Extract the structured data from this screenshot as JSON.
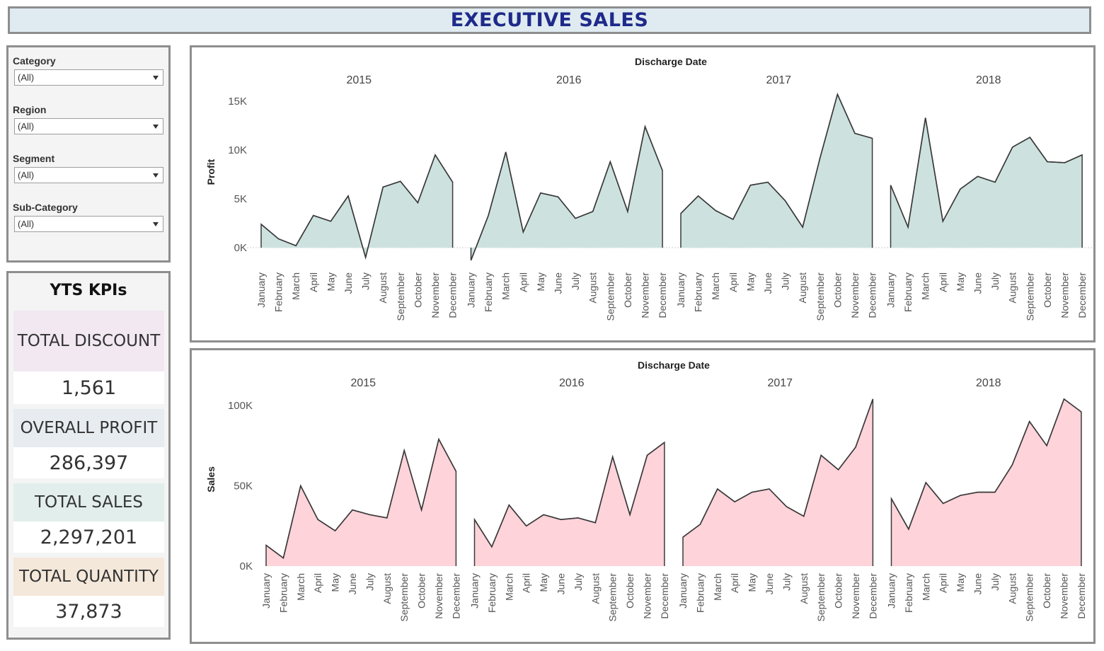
{
  "header": {
    "title": "EXECUTIVE SALES"
  },
  "filters": [
    {
      "label": "Category",
      "value": "(All)"
    },
    {
      "label": "Region",
      "value": "(All)"
    },
    {
      "label": "Segment",
      "value": "(All)"
    },
    {
      "label": "Sub-Category",
      "value": "(All)"
    }
  ],
  "kpis": {
    "title": "YTS KPIs",
    "items": [
      {
        "label": "TOTAL DISCOUNT",
        "value": "1,561",
        "color": "#f1e8f2"
      },
      {
        "label": "OVERALL PROFIT",
        "value": "286,397",
        "color": "#e6ecf0"
      },
      {
        "label": "TOTAL SALES",
        "value": "2,297,201",
        "color": "#e2eeec"
      },
      {
        "label": "TOTAL QUANTITY",
        "value": "37,873",
        "color": "#f4e8da"
      }
    ]
  },
  "chart_data": [
    {
      "type": "area",
      "title": "Discharge Date",
      "ylabel": "Profit",
      "ylim": [
        -1500,
        17000
      ],
      "yticks": [
        0,
        5000,
        10000,
        15000
      ],
      "ytick_labels": [
        "0K",
        "5K",
        "10K",
        "15K"
      ],
      "grid": false,
      "fill": "#cde2df",
      "stroke": "#3a3a3a",
      "months": [
        "January",
        "February",
        "March",
        "April",
        "May",
        "June",
        "July",
        "August",
        "September",
        "October",
        "November",
        "December"
      ],
      "series": [
        {
          "name": "2015",
          "values": [
            2400,
            900,
            200,
            3300,
            2700,
            5300,
            -1000,
            6200,
            6800,
            4600,
            9500,
            6700
          ]
        },
        {
          "name": "2016",
          "values": [
            -1300,
            3300,
            9800,
            1600,
            5600,
            5200,
            3000,
            3700,
            8800,
            3700,
            12400,
            7900
          ]
        },
        {
          "name": "2017",
          "values": [
            3500,
            5300,
            3800,
            2900,
            6400,
            6700,
            4800,
            2100,
            9200,
            15700,
            11700,
            11200
          ]
        },
        {
          "name": "2018",
          "values": [
            6400,
            2100,
            13300,
            2700,
            6000,
            7300,
            6700,
            10300,
            11300,
            8800,
            8700,
            9500
          ]
        }
      ]
    },
    {
      "type": "area",
      "title": "Discharge Date",
      "ylabel": "Sales",
      "ylim": [
        0,
        108000
      ],
      "yticks": [
        0,
        50000,
        100000
      ],
      "ytick_labels": [
        "0K",
        "50K",
        "100K"
      ],
      "grid": false,
      "fill": "#ffd3da",
      "stroke": "#3a3a3a",
      "months": [
        "January",
        "February",
        "March",
        "April",
        "May",
        "June",
        "July",
        "August",
        "September",
        "October",
        "November",
        "December"
      ],
      "series": [
        {
          "name": "2015",
          "values": [
            13000,
            5000,
            50000,
            29000,
            22000,
            35000,
            32000,
            30000,
            72000,
            35000,
            79000,
            59000
          ]
        },
        {
          "name": "2016",
          "values": [
            29000,
            12000,
            38000,
            25000,
            32000,
            29000,
            30000,
            27000,
            68000,
            32000,
            69000,
            77000
          ]
        },
        {
          "name": "2017",
          "values": [
            18000,
            26000,
            48000,
            40000,
            46000,
            48000,
            37000,
            31000,
            69000,
            60000,
            74000,
            104000
          ]
        },
        {
          "name": "2018",
          "values": [
            42000,
            23000,
            52000,
            39000,
            44000,
            46000,
            46000,
            63000,
            90000,
            75000,
            104000,
            96000
          ]
        }
      ]
    }
  ]
}
